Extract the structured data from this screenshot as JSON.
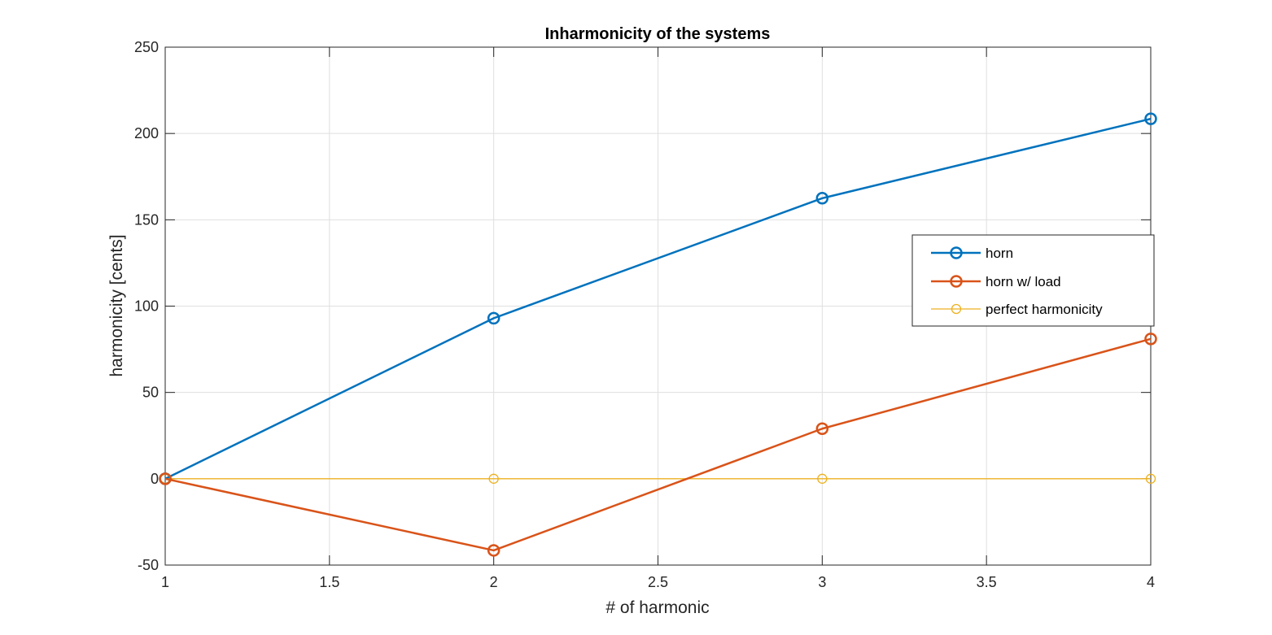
{
  "chart_data": {
    "type": "line",
    "title": "Inharmonicity of the systems",
    "xlabel": "# of harmonic",
    "ylabel": "harmonicity [cents]",
    "xlim": [
      1,
      4
    ],
    "ylim": [
      -50,
      250
    ],
    "xticks": [
      1,
      1.5,
      2,
      2.5,
      3,
      3.5,
      4
    ],
    "yticks": [
      -50,
      0,
      50,
      100,
      150,
      200,
      250
    ],
    "xtick_labels": [
      "1",
      "1.5",
      "2",
      "2.5",
      "3",
      "3.5",
      "4"
    ],
    "ytick_labels": [
      "-50",
      "0",
      "50",
      "100",
      "150",
      "200",
      "250"
    ],
    "grid": true,
    "legend_position": "right",
    "x": [
      1,
      2,
      3,
      4
    ],
    "series": [
      {
        "name": "horn",
        "values": [
          0,
          93,
          162.5,
          208.5
        ],
        "color": "#0072BD",
        "bold": true
      },
      {
        "name": "horn w/ load",
        "values": [
          0,
          -41.5,
          29,
          81
        ],
        "color": "#D95319",
        "bold": true
      },
      {
        "name": "perfect harmonicity",
        "values": [
          0,
          0,
          0,
          0
        ],
        "color": "#EDB120",
        "bold": false
      }
    ]
  }
}
